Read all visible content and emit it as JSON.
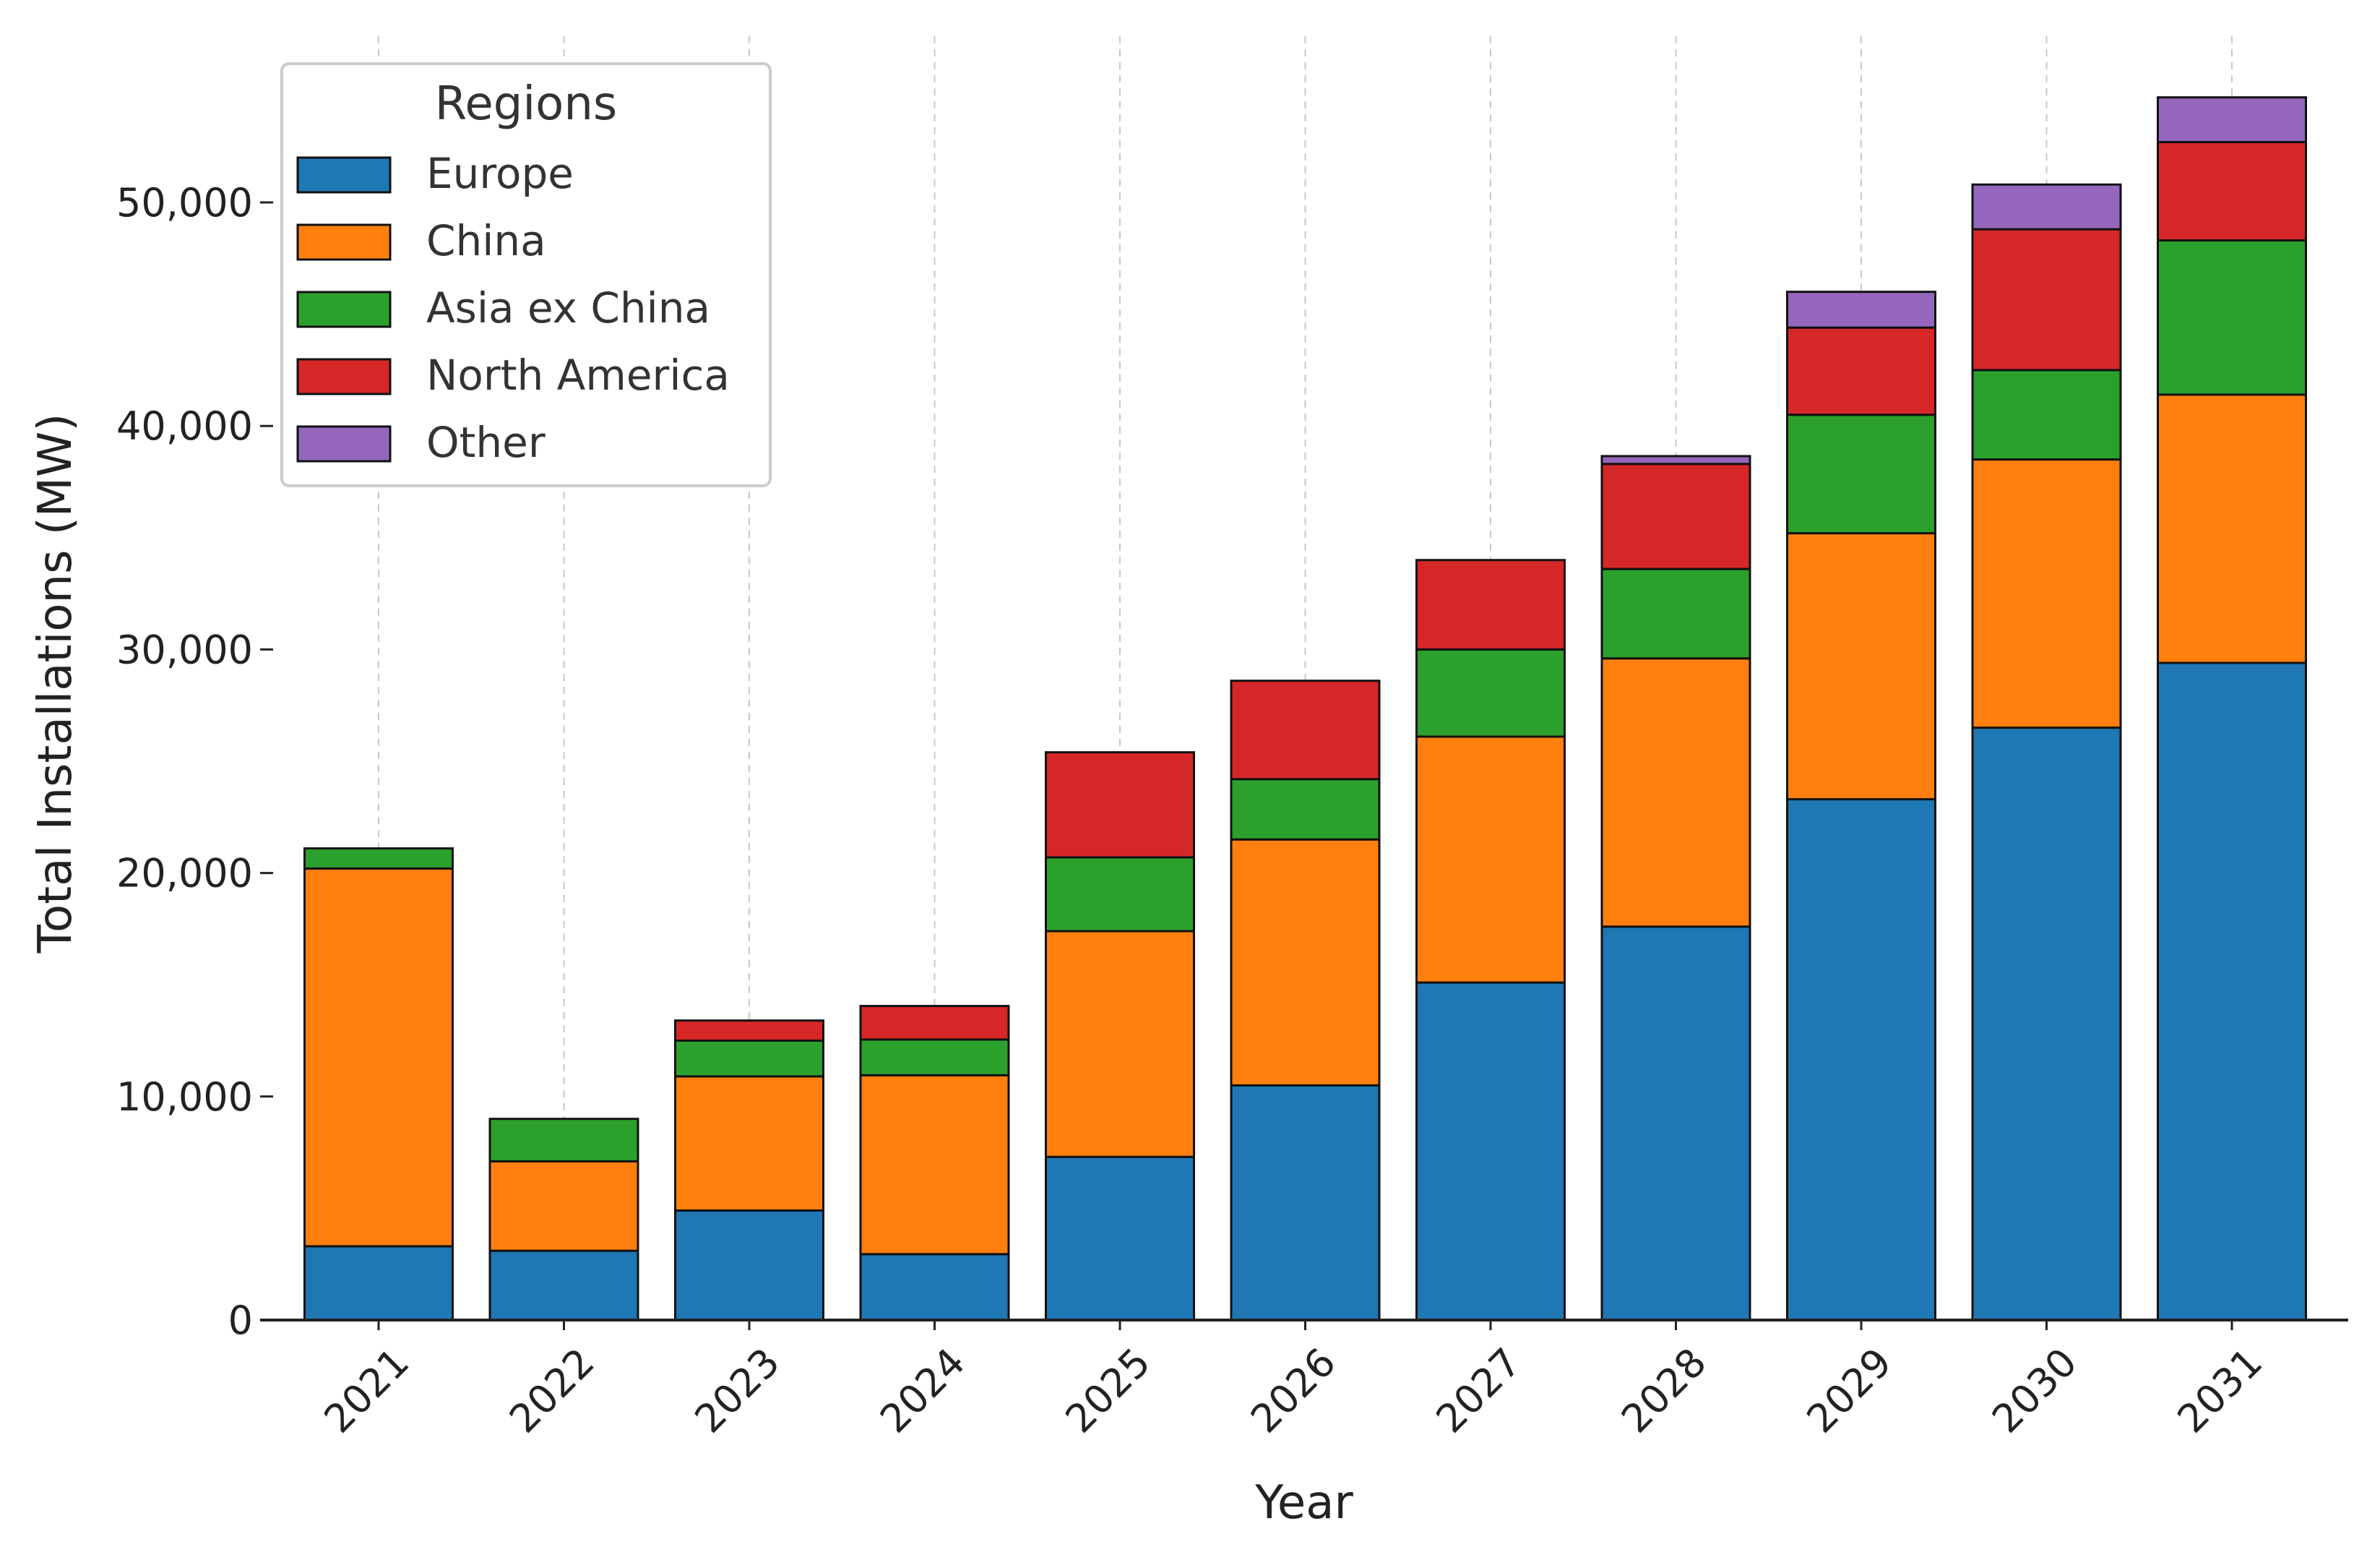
{
  "chart_data": {
    "type": "bar",
    "stacked": true,
    "title": "",
    "xlabel": "Year",
    "ylabel": "Total Installations (MW)",
    "categories": [
      "2021",
      "2022",
      "2023",
      "2024",
      "2025",
      "2026",
      "2027",
      "2028",
      "2029",
      "2030",
      "2031"
    ],
    "series": [
      {
        "name": "Europe",
        "color": "#1f77b4",
        "values": [
          3300,
          3100,
          4900,
          2950,
          7300,
          10500,
          15100,
          17600,
          23300,
          26500,
          29400
        ]
      },
      {
        "name": "China",
        "color": "#ff7f0e",
        "values": [
          16900,
          4000,
          6000,
          8000,
          10100,
          11000,
          11000,
          12000,
          11900,
          12000,
          12000
        ]
      },
      {
        "name": "Asia ex China",
        "color": "#2ca02c",
        "values": [
          900,
          1900,
          1600,
          1600,
          3300,
          2700,
          3900,
          4000,
          5300,
          4000,
          6900
        ]
      },
      {
        "name": "North America",
        "color": "#d62728",
        "values": [
          0,
          0,
          900,
          1500,
          4700,
          4400,
          4000,
          4700,
          3900,
          6300,
          4400
        ]
      },
      {
        "name": "Other",
        "color": "#9467bd",
        "values": [
          0,
          0,
          0,
          0,
          0,
          0,
          0,
          350,
          1600,
          2000,
          2000
        ]
      }
    ],
    "ylim": [
      0,
      56000
    ],
    "yticks": [
      0,
      10000,
      20000,
      30000,
      40000,
      50000
    ],
    "ytick_labels": [
      "0",
      "10,000",
      "20,000",
      "30,000",
      "40,000",
      "50,000"
    ],
    "legend": {
      "title": "Regions",
      "position": "top-left"
    },
    "grid": "vertical dashed"
  }
}
